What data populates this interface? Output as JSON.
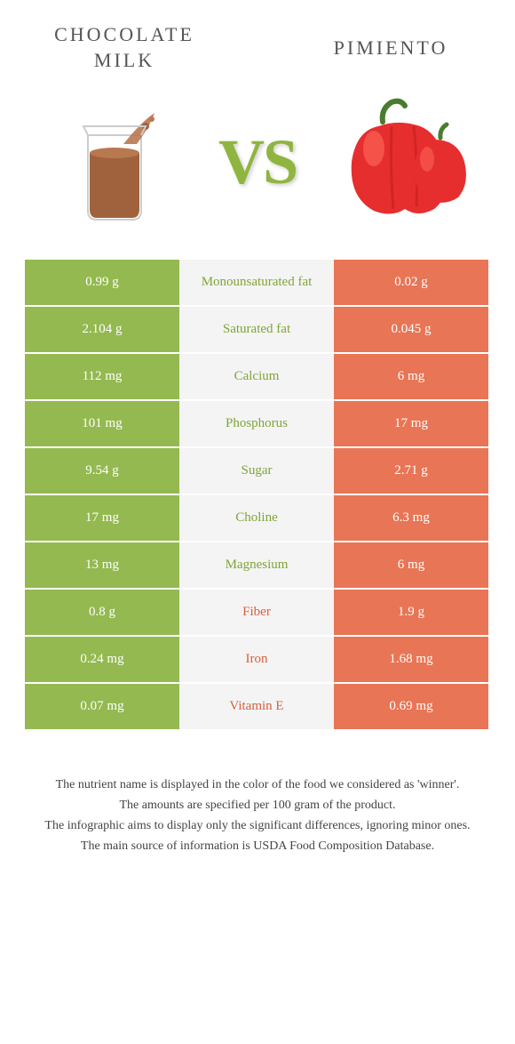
{
  "header": {
    "leftTitle": "CHOCOLATE MILK",
    "rightTitle": "PIMIENTO",
    "vs": "VS"
  },
  "colors": {
    "green": "#94b950",
    "red": "#e87555",
    "greenText": "#7fa536",
    "redText": "#d8603e"
  },
  "rows": [
    {
      "left": "0.99 g",
      "label": "Monounsaturated fat",
      "right": "0.02 g",
      "winner": "left"
    },
    {
      "left": "2.104 g",
      "label": "Saturated fat",
      "right": "0.045 g",
      "winner": "left"
    },
    {
      "left": "112 mg",
      "label": "Calcium",
      "right": "6 mg",
      "winner": "left"
    },
    {
      "left": "101 mg",
      "label": "Phosphorus",
      "right": "17 mg",
      "winner": "left"
    },
    {
      "left": "9.54 g",
      "label": "Sugar",
      "right": "2.71 g",
      "winner": "left"
    },
    {
      "left": "17 mg",
      "label": "Choline",
      "right": "6.3 mg",
      "winner": "left"
    },
    {
      "left": "13 mg",
      "label": "Magnesium",
      "right": "6 mg",
      "winner": "left"
    },
    {
      "left": "0.8 g",
      "label": "Fiber",
      "right": "1.9 g",
      "winner": "right"
    },
    {
      "left": "0.24 mg",
      "label": "Iron",
      "right": "1.68 mg",
      "winner": "right"
    },
    {
      "left": "0.07 mg",
      "label": "Vitamin E",
      "right": "0.69 mg",
      "winner": "right"
    }
  ],
  "footer": {
    "line1": "The nutrient name is displayed in the color of the food we considered as 'winner'.",
    "line2": "The amounts are specified per 100 gram of the product.",
    "line3": "The infographic aims to display only the significant differences, ignoring minor ones.",
    "line4": "The main source of information is USDA Food Composition Database."
  }
}
